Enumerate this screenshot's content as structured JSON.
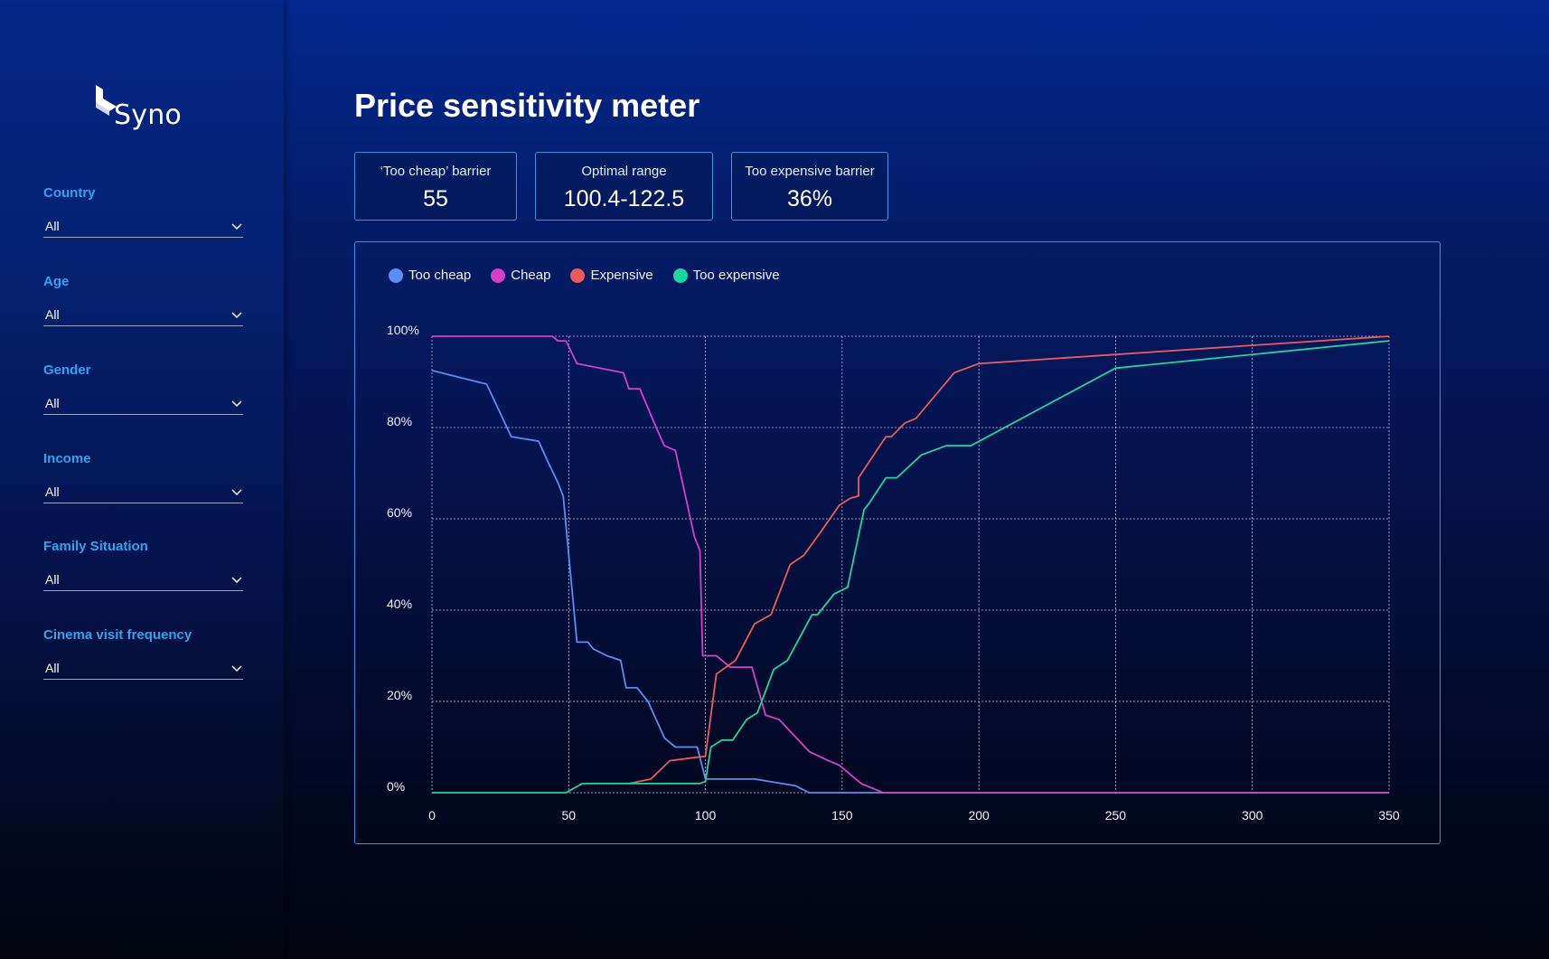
{
  "brand": {
    "name": "Syno"
  },
  "filters": [
    {
      "label": "Country",
      "value": "All"
    },
    {
      "label": "Age",
      "value": "All"
    },
    {
      "label": "Gender",
      "value": "All"
    },
    {
      "label": "Income",
      "value": "All"
    },
    {
      "label": "Family Situation",
      "value": "All"
    },
    {
      "label": "Cinema visit frequency",
      "value": "All"
    }
  ],
  "page_title": "Price sensitivity meter",
  "kpis": [
    {
      "label": "‘Too cheap’ barrier",
      "value": "55"
    },
    {
      "label": "Optimal range",
      "value": "100.4-122.5"
    },
    {
      "label": "Too expensive barrier",
      "value": "36%"
    }
  ],
  "colors": {
    "too_cheap": "#5b8ef0",
    "cheap": "#d63fc8",
    "expensive": "#ee5a5a",
    "too_expensive": "#1fd6a0",
    "filter_label": "#2fa4f0",
    "panel_border": "#3d8fe0"
  },
  "chart_data": {
    "type": "line",
    "xlim": [
      0,
      350
    ],
    "ylim": [
      0,
      100
    ],
    "x_ticks": [
      "0",
      "50",
      "100",
      "150",
      "200",
      "250",
      "300",
      "350"
    ],
    "y_ticks": [
      "0%",
      "20%",
      "40%",
      "60%",
      "80%",
      "100%"
    ],
    "grid": true,
    "legend_position": "top-left",
    "series": [
      {
        "name": "Too cheap",
        "color_key": "too_cheap",
        "points": [
          [
            0,
            92.5
          ],
          [
            20,
            89.5
          ],
          [
            29,
            78
          ],
          [
            39,
            77
          ],
          [
            42,
            73
          ],
          [
            46,
            68
          ],
          [
            48,
            65
          ],
          [
            53,
            33
          ],
          [
            57,
            33
          ],
          [
            59,
            31.5
          ],
          [
            64,
            30
          ],
          [
            69,
            29
          ],
          [
            71,
            23
          ],
          [
            75,
            23
          ],
          [
            79,
            20
          ],
          [
            85,
            12
          ],
          [
            89,
            10
          ],
          [
            97,
            10
          ],
          [
            100,
            3
          ],
          [
            118,
            3
          ],
          [
            133,
            1.5
          ],
          [
            138,
            0
          ],
          [
            350,
            0
          ]
        ]
      },
      {
        "name": "Cheap",
        "color_key": "cheap",
        "points": [
          [
            0,
            100
          ],
          [
            44,
            100
          ],
          [
            46,
            99
          ],
          [
            49,
            99
          ],
          [
            53,
            94
          ],
          [
            70,
            92
          ],
          [
            72,
            88.5
          ],
          [
            76,
            88.5
          ],
          [
            82,
            80
          ],
          [
            85,
            76
          ],
          [
            89,
            75
          ],
          [
            96,
            56
          ],
          [
            98,
            53
          ],
          [
            99,
            30
          ],
          [
            104,
            30
          ],
          [
            109,
            27.5
          ],
          [
            117,
            27.5
          ],
          [
            122,
            17
          ],
          [
            127,
            16
          ],
          [
            138,
            9
          ],
          [
            145,
            7
          ],
          [
            149,
            6
          ],
          [
            157,
            2
          ],
          [
            165,
            0
          ],
          [
            350,
            0
          ]
        ]
      },
      {
        "name": "Expensive",
        "color_key": "expensive",
        "points": [
          [
            72,
            2
          ],
          [
            80,
            3
          ],
          [
            87,
            7
          ],
          [
            100,
            8
          ],
          [
            104,
            26
          ],
          [
            111,
            29
          ],
          [
            118,
            37
          ],
          [
            124,
            39
          ],
          [
            131,
            50
          ],
          [
            136,
            52
          ],
          [
            142,
            57
          ],
          [
            149,
            63
          ],
          [
            153,
            64.5
          ],
          [
            156,
            65
          ],
          [
            156,
            69
          ],
          [
            166,
            78
          ],
          [
            168,
            78
          ],
          [
            173,
            81
          ],
          [
            177,
            82
          ],
          [
            191,
            92
          ],
          [
            200,
            94
          ],
          [
            250,
            96
          ],
          [
            350,
            100
          ]
        ]
      },
      {
        "name": "Too expensive",
        "color_key": "too_expensive",
        "points": [
          [
            0,
            0
          ],
          [
            49,
            0
          ],
          [
            55,
            2
          ],
          [
            98,
            2
          ],
          [
            100,
            2.5
          ],
          [
            102,
            10
          ],
          [
            106,
            11.5
          ],
          [
            110,
            11.5
          ],
          [
            115,
            16
          ],
          [
            119,
            17.5
          ],
          [
            125,
            27
          ],
          [
            130,
            29
          ],
          [
            139,
            39
          ],
          [
            141,
            39
          ],
          [
            147,
            43.5
          ],
          [
            152,
            45
          ],
          [
            158,
            62
          ],
          [
            160,
            63.5
          ],
          [
            166,
            69
          ],
          [
            170,
            69
          ],
          [
            179,
            74
          ],
          [
            188,
            76
          ],
          [
            197,
            76
          ],
          [
            250,
            93
          ],
          [
            350,
            99
          ]
        ]
      }
    ]
  }
}
